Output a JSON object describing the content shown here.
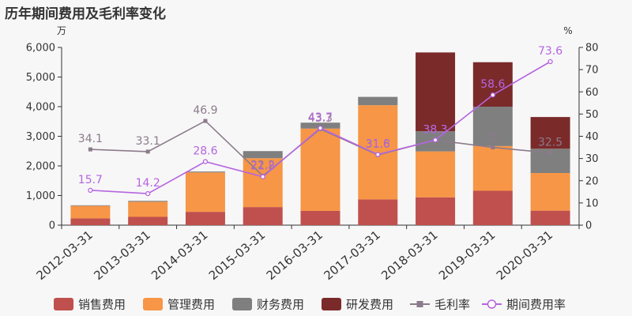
{
  "title": "历年期间费用及毛利率变化",
  "chart_data": {
    "type": "bar",
    "title": "历年期间费用及毛利率变化",
    "y_left_unit": "万",
    "y_right_unit": "%",
    "ylim_left": [
      0,
      6000
    ],
    "yticks_left": [
      0,
      1000,
      2000,
      3000,
      4000,
      5000,
      6000
    ],
    "yticks_left_labels": [
      "0",
      "1,000",
      "2,000",
      "3,000",
      "4,000",
      "5,000",
      "6,000"
    ],
    "ylim_right": [
      0,
      80
    ],
    "yticks_right": [
      0,
      10,
      20,
      30,
      40,
      50,
      60,
      70,
      80
    ],
    "categories": [
      "2012-03-31",
      "2013-03-31",
      "2014-03-31",
      "2015-03-31",
      "2016-03-31",
      "2017-03-31",
      "2018-03-31",
      "2019-03-31",
      "2020-03-31"
    ],
    "stacked_bars": [
      {
        "name": "销售费用",
        "color": "#c0504d",
        "values": [
          230,
          280,
          450,
          610,
          480,
          870,
          940,
          1160,
          490
        ]
      },
      {
        "name": "管理费用",
        "color": "#f79646",
        "values": [
          420,
          510,
          1330,
          1650,
          2780,
          3180,
          1550,
          1510,
          1270
        ]
      },
      {
        "name": "财务费用",
        "color": "#7f7f7f",
        "values": [
          20,
          30,
          30,
          240,
          200,
          280,
          680,
          1330,
          820
        ]
      },
      {
        "name": "研发费用",
        "color": "#7b2a2a",
        "values": [
          0,
          0,
          0,
          0,
          0,
          0,
          2660,
          1500,
          1070
        ]
      }
    ],
    "lines": [
      {
        "name": "毛利率",
        "color": "#8b7b8b",
        "marker": "square",
        "values": [
          34.1,
          33.1,
          46.9,
          22.2,
          43.3,
          31.6,
          38.3,
          35.0,
          32.5
        ],
        "labels": [
          "34.1",
          "33.1",
          "46.9",
          "22.2",
          "43.3",
          "31.6",
          "38.3",
          "35",
          "32.5"
        ]
      },
      {
        "name": "期间费用率",
        "color": "#b565e0",
        "marker": "circle",
        "values": [
          15.7,
          14.2,
          28.6,
          21.8,
          43.7,
          31.8,
          38.3,
          58.6,
          73.6
        ],
        "labels": [
          "15.7",
          "14.2",
          "28.6",
          "21.8",
          "43.7",
          "31.8",
          "38.3",
          "58.6",
          "73.6"
        ]
      }
    ],
    "legend": {
      "position": "bottom",
      "items": [
        {
          "name": "销售费用",
          "symbol": "rect",
          "color": "#c0504d"
        },
        {
          "name": "管理费用",
          "symbol": "rect",
          "color": "#f79646"
        },
        {
          "name": "财务费用",
          "symbol": "rect",
          "color": "#7f7f7f"
        },
        {
          "name": "研发费用",
          "symbol": "rect",
          "color": "#7b2a2a"
        },
        {
          "name": "毛利率",
          "symbol": "line-square",
          "color": "#8b7b8b"
        },
        {
          "name": "期间费用率",
          "symbol": "line-circle",
          "color": "#b565e0"
        }
      ]
    },
    "grid": false
  }
}
